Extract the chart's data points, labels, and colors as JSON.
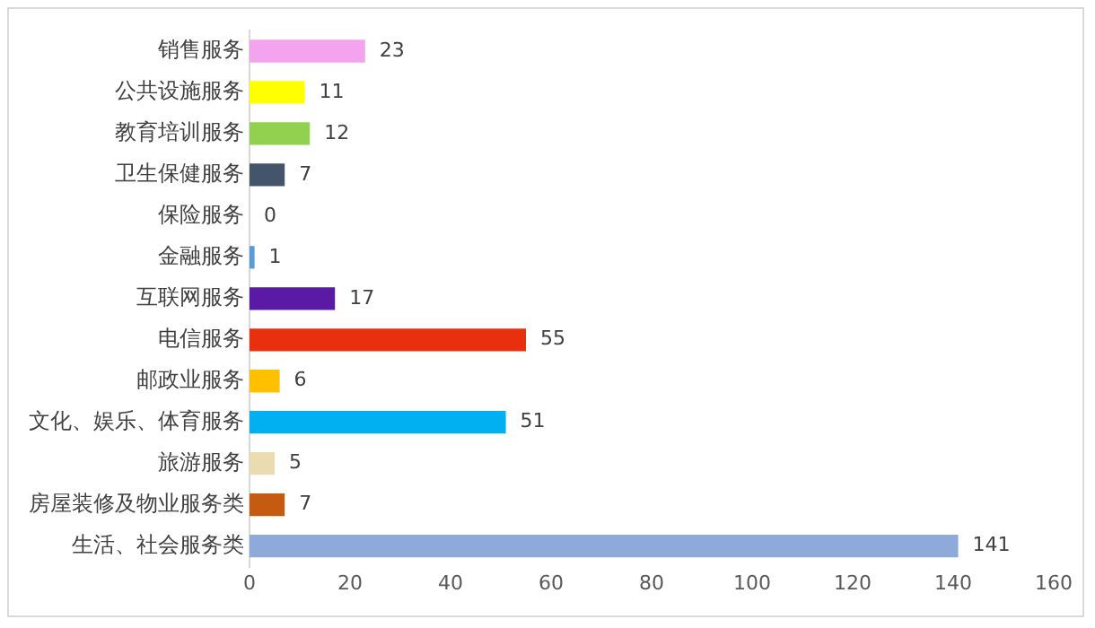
{
  "chart_data": {
    "type": "bar",
    "orientation": "horizontal",
    "categories": [
      "销售服务",
      "公共设施服务",
      "教育培训服务",
      "卫生保健服务",
      "保险服务",
      "金融服务",
      "互联网服务",
      "电信服务",
      "邮政业服务",
      "文化、娱乐、体育服务",
      "旅游服务",
      "房屋装修及物业服务类",
      "生活、社会服务类"
    ],
    "values": [
      23,
      11,
      12,
      7,
      0,
      1,
      17,
      55,
      6,
      51,
      5,
      7,
      141
    ],
    "colors": [
      "#f4a3ee",
      "#ffff00",
      "#92d050",
      "#44546a",
      "#a5a5a5",
      "#5b9bd5",
      "#5a1aa6",
      "#e8300e",
      "#ffc000",
      "#00b0f0",
      "#eadcb0",
      "#c55a11",
      "#8eaadb"
    ],
    "xlim": [
      0,
      160
    ],
    "xticks": [
      0,
      20,
      40,
      60,
      80,
      100,
      120,
      140,
      160
    ],
    "grid": false,
    "legend": false,
    "data_labels": true
  }
}
